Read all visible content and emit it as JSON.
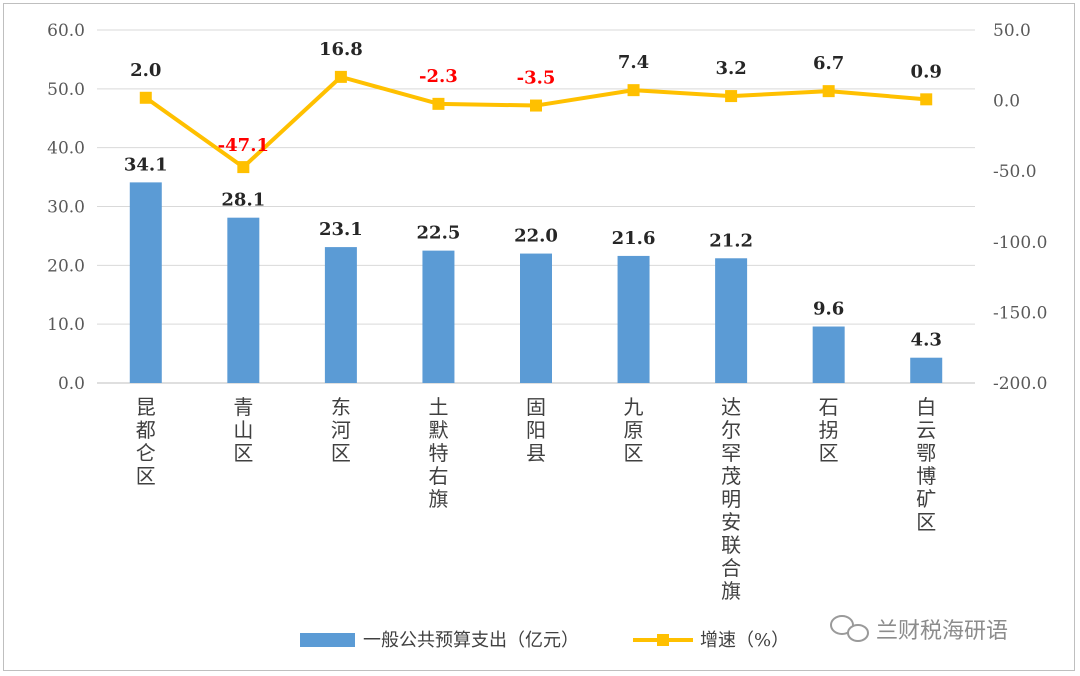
{
  "chart_data": {
    "type": "bar",
    "categories": [
      "昆都仑区",
      "青山区",
      "东河区",
      "土默特右旗",
      "固阳县",
      "九原区",
      "达尔罕茂明安联合旗",
      "石拐区",
      "白云鄂博矿区"
    ],
    "series": [
      {
        "name": "一般公共预算支出（亿元）",
        "type": "bar",
        "axis": "left",
        "color": "#5b9bd5",
        "values": [
          34.1,
          28.1,
          23.1,
          22.5,
          22.0,
          21.6,
          21.2,
          9.6,
          4.3
        ],
        "labels": [
          "34.1",
          "28.1",
          "23.1",
          "22.5",
          "22.0",
          "21.6",
          "21.2",
          "9.6",
          "4.3"
        ]
      },
      {
        "name": "增速（%）",
        "type": "line",
        "axis": "right",
        "color": "#ffc000",
        "values": [
          2.0,
          -47.1,
          16.8,
          -2.3,
          -3.5,
          7.4,
          3.2,
          6.7,
          0.9
        ],
        "labels": [
          "2.0",
          "-47.1",
          "16.8",
          "-2.3",
          "-3.5",
          "7.4",
          "3.2",
          "6.7",
          "0.9"
        ]
      }
    ],
    "y_left": {
      "min": 0,
      "max": 60,
      "step": 10,
      "ticks": [
        "0.0",
        "10.0",
        "20.0",
        "30.0",
        "40.0",
        "50.0",
        "60.0"
      ]
    },
    "y_right": {
      "min": -200,
      "max": 50,
      "step": 50,
      "ticks": [
        "-200.0",
        "-150.0",
        "-100.0",
        "-50.0",
        "0.0",
        "50.0"
      ]
    },
    "grid": true,
    "legend_position": "bottom",
    "negative_label_color": "#ff0000",
    "positive_label_color": "#262626"
  },
  "watermark": {
    "icon": "wechat-icon",
    "text": "兰财税海研语"
  }
}
